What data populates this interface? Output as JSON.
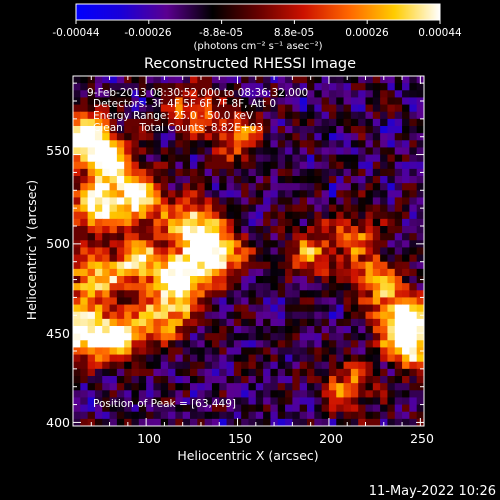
{
  "chart_data": {
    "type": "heatmap",
    "colorbar": {
      "tick_labels": [
        "-0.00044",
        "-0.00026",
        "-8.8e-05",
        "8.8e-05",
        "0.00026",
        "0.00044"
      ],
      "units_label": "(photons cm⁻² s⁻¹ asec⁻²)",
      "range": [
        -0.00044,
        0.00044
      ],
      "colors": [
        "#0000ff",
        "#1a00d8",
        "#5b0090",
        "#000000",
        "#660000",
        "#cc1100",
        "#ff6600",
        "#ffcc00",
        "#ffffff"
      ]
    },
    "title": "Reconstructed RHESSI Image",
    "xlabel": "Heliocentric X (arcsec)",
    "ylabel": "Heliocentric Y (arcsec)",
    "xlim": [
      60,
      252
    ],
    "ylim": [
      398,
      594
    ],
    "xticks": [
      100,
      150,
      200,
      250
    ],
    "yticks": [
      400,
      450,
      500,
      550
    ],
    "annotations": {
      "time_range": "9-Feb-2013 08:30:52.000 to 08:36:32.000",
      "detectors": "Detectors: 3F 4F 5F 6F 7F 8F, Att 0",
      "energy_range": "Energy Range: 25.0 - 50.0 keV",
      "method_counts": "Clean     Total Counts: 8.82E+03",
      "peak": "Position of Peak = [63,449]"
    },
    "grid_cols": 48,
    "grid_rows": 49,
    "hot_regions": [
      {
        "x": 66,
        "y": 560,
        "strength": 0.95
      },
      {
        "x": 80,
        "y": 545,
        "strength": 0.9
      },
      {
        "x": 72,
        "y": 520,
        "strength": 0.85
      },
      {
        "x": 96,
        "y": 525,
        "strength": 0.85
      },
      {
        "x": 125,
        "y": 510,
        "strength": 0.9
      },
      {
        "x": 140,
        "y": 495,
        "strength": 0.85
      },
      {
        "x": 120,
        "y": 480,
        "strength": 1.0
      },
      {
        "x": 95,
        "y": 490,
        "strength": 0.8
      },
      {
        "x": 70,
        "y": 480,
        "strength": 0.8
      },
      {
        "x": 110,
        "y": 460,
        "strength": 0.7
      },
      {
        "x": 63,
        "y": 449,
        "strength": 1.0
      },
      {
        "x": 85,
        "y": 448,
        "strength": 0.85
      },
      {
        "x": 150,
        "y": 560,
        "strength": 0.6
      },
      {
        "x": 125,
        "y": 575,
        "strength": 0.55
      },
      {
        "x": 240,
        "y": 460,
        "strength": 0.85
      },
      {
        "x": 245,
        "y": 445,
        "strength": 0.95
      },
      {
        "x": 225,
        "y": 480,
        "strength": 0.6
      },
      {
        "x": 210,
        "y": 420,
        "strength": 0.6
      },
      {
        "x": 190,
        "y": 495,
        "strength": 0.55
      },
      {
        "x": 215,
        "y": 505,
        "strength": 0.5
      }
    ]
  },
  "footer": {
    "timestamp": "11-May-2022 10:26"
  }
}
